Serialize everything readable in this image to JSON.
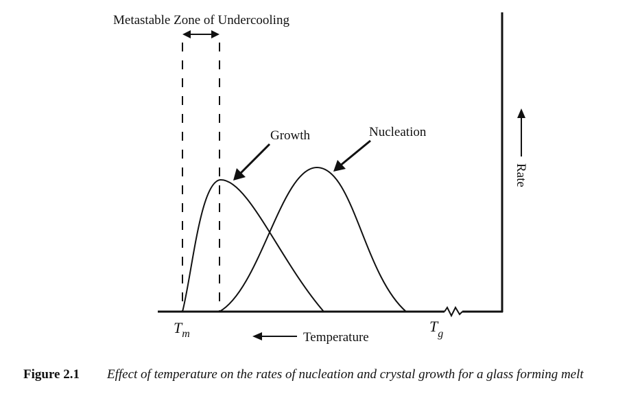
{
  "chart_data": {
    "type": "line",
    "title": "",
    "xlabel": "Temperature",
    "ylabel": "Rate",
    "grid": false,
    "zone_label": "Metastable Zone of Undercooling",
    "ticks": {
      "tm": "T",
      "tm_sub": "m",
      "tg": "T",
      "tg_sub": "g"
    },
    "series": [
      {
        "name": "Growth",
        "color": "#111111"
      },
      {
        "name": "Nucleation",
        "color": "#111111"
      }
    ]
  },
  "caption": {
    "number": "Figure 2.1",
    "text": "Effect of temperature on the rates of nucleation and crystal growth for a glass forming melt"
  }
}
